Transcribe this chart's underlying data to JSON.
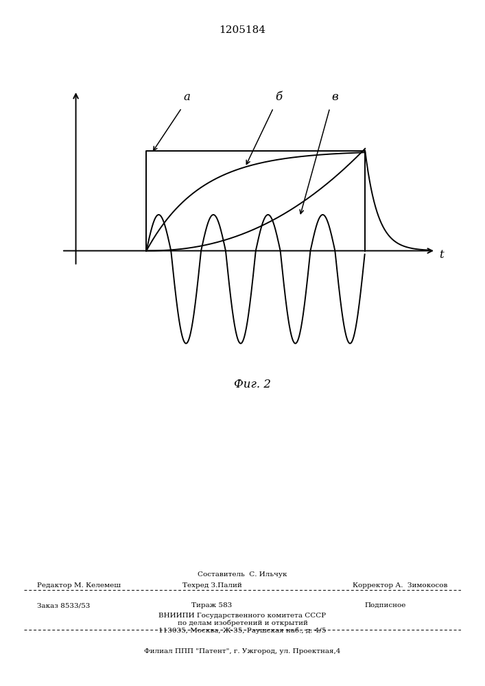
{
  "patent_number": "1205184",
  "fig_label": "Фиг. 2",
  "label_a": "а",
  "label_b": "б",
  "label_v": "в",
  "label_t": "t",
  "line_color": "#000000",
  "bg_color": "#ffffff",
  "footer_line0": "Составитель  С. Ильчук",
  "footer_line1_left": "Редактор М. Келемеш",
  "footer_line1_mid": "Техред З.Палий",
  "footer_line1_right": "Корректор А.  Зимокосов",
  "footer_line2_left": "Заказ 8533/53",
  "footer_line2_mid": "Тираж 583",
  "footer_line2_right": "Подписное",
  "footer_line3": "ВНИИПИ Государственного комитета СССР",
  "footer_line4": "по делам изобретений и открытий",
  "footer_line5": "113035, Москва, Ж-35, Раушская наб., д. 4/5",
  "footer_line6": "Филиал ППП \"Патент\", г. Ужгород, ул. Проектная,4"
}
